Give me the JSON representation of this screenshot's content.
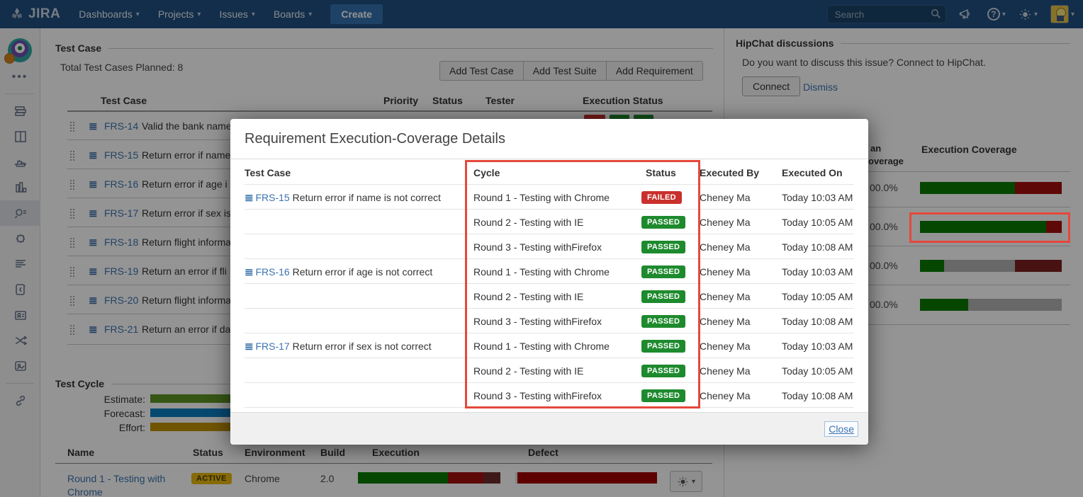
{
  "nav": {
    "brand": "JIRA",
    "items": {
      "dashboards": "Dashboards",
      "projects": "Projects",
      "issues": "Issues",
      "boards": "Boards"
    },
    "create_label": "Create",
    "search_placeholder": "Search"
  },
  "sidebar": {
    "icons": [
      "project-avatar",
      "more",
      "backlog",
      "board",
      "releases",
      "reports",
      "issues-search",
      "addons",
      "details",
      "development",
      "contacts",
      "workflow",
      "images",
      "link"
    ]
  },
  "test_case_section": {
    "title": "Test Case",
    "total": "Total Test Cases Planned: 8",
    "buttons": {
      "add_test_case": "Add Test Case",
      "add_test_suite": "Add Test Suite",
      "add_requirement": "Add Requirement"
    },
    "columns": {
      "test_case": "Test Case",
      "priority": "Priority",
      "status": "Status",
      "tester": "Tester",
      "execution_status": "Execution Status"
    },
    "rows": [
      {
        "id": "FRS-14",
        "title": "Valid the bank name"
      },
      {
        "id": "FRS-15",
        "title": "Return error if name"
      },
      {
        "id": "FRS-16",
        "title": "Return error if age i"
      },
      {
        "id": "FRS-17",
        "title": "Return error if sex is"
      },
      {
        "id": "FRS-18",
        "title": "Return flight informa"
      },
      {
        "id": "FRS-19",
        "title": "Return an error if fli"
      },
      {
        "id": "FRS-20",
        "title": "Return flight informa"
      },
      {
        "id": "FRS-21",
        "title": "Return an error if da"
      }
    ]
  },
  "test_cycle_section": {
    "title": "Test Cycle",
    "metrics": [
      {
        "label": "Estimate:",
        "segments": [
          {
            "color": "#5d9425",
            "pct": 100
          }
        ]
      },
      {
        "label": "Forecast:",
        "segments": [
          {
            "color": "#0b7fc2",
            "pct": 100
          }
        ]
      },
      {
        "label": "Effort:",
        "segments": [
          {
            "color": "#c29100",
            "pct": 100
          }
        ]
      }
    ],
    "columns": {
      "name": "Name",
      "status": "Status",
      "environment": "Environment",
      "build": "Build",
      "execution": "Execution",
      "defect": "Defect"
    },
    "row": {
      "name_line1": "Round 1 - Testing with",
      "name_line2": "Chrome",
      "status": "ACTIVE",
      "environment": "Chrome",
      "build": "2.0",
      "execution_segments": [
        {
          "color": "#0a7a00",
          "pct": 63
        },
        {
          "color": "#a40f0f",
          "pct": 25
        },
        {
          "color": "#6d2b2b",
          "pct": 12
        }
      ],
      "defect_segments": [
        {
          "color": "#e0e0e0",
          "pct": 1.5
        },
        {
          "color": "#a40000",
          "pct": 98.5
        }
      ]
    }
  },
  "hipchat": {
    "title": "HipChat discussions",
    "message": "Do you want to discuss this issue? Connect to HipChat.",
    "connect_label": "Connect",
    "dismiss_label": "Dismiss"
  },
  "coverage_panel": {
    "plan_header_fragment_1": "an",
    "plan_header_fragment_2": "overage",
    "exec_header": "Execution Coverage",
    "rows": [
      {
        "plan": "00.0%",
        "segments": [
          {
            "color": "#0a7a00",
            "pct": 67
          },
          {
            "color": "#a40f0f",
            "pct": 33
          }
        ]
      },
      {
        "plan": "00.0%",
        "segments": [
          {
            "color": "#0a7a00",
            "pct": 89
          },
          {
            "color": "#a40f0f",
            "pct": 11
          }
        ]
      },
      {
        "plan": "00.0%",
        "segments": [
          {
            "color": "#0a7a00",
            "pct": 17
          },
          {
            "color": "#b3b3b3",
            "pct": 50
          },
          {
            "color": "#7c1f1f",
            "pct": 33
          }
        ]
      },
      {
        "plan": "00.0%",
        "segments": [
          {
            "color": "#0a7a00",
            "pct": 34
          },
          {
            "color": "#b3b3b3",
            "pct": 66
          }
        ]
      }
    ]
  },
  "modal": {
    "title": "Requirement Execution-Coverage Details",
    "columns": {
      "test_case": "Test Case",
      "cycle": "Cycle",
      "status": "Status",
      "executed_by": "Executed By",
      "executed_on": "Executed On"
    },
    "rows": [
      {
        "id": "FRS-15",
        "title": "Return error if name is not correct",
        "cycle": "Round 1 - Testing with Chrome",
        "status": "FAILED",
        "executed_by": "Cheney Ma",
        "executed_on": "Today 10:03 AM"
      },
      {
        "id": "",
        "title": "",
        "cycle": "Round 2 - Testing with IE",
        "status": "PASSED",
        "executed_by": "Cheney Ma",
        "executed_on": "Today 10:05 AM"
      },
      {
        "id": "",
        "title": "",
        "cycle": "Round 3 - Testing withFirefox",
        "status": "PASSED",
        "executed_by": "Cheney Ma",
        "executed_on": "Today 10:08 AM"
      },
      {
        "id": "FRS-16",
        "title": "Return error if age is not correct",
        "cycle": "Round 1 - Testing with Chrome",
        "status": "PASSED",
        "executed_by": "Cheney Ma",
        "executed_on": "Today 10:03 AM"
      },
      {
        "id": "",
        "title": "",
        "cycle": "Round 2 - Testing with IE",
        "status": "PASSED",
        "executed_by": "Cheney Ma",
        "executed_on": "Today 10:05 AM"
      },
      {
        "id": "",
        "title": "",
        "cycle": "Round 3 - Testing withFirefox",
        "status": "PASSED",
        "executed_by": "Cheney Ma",
        "executed_on": "Today 10:08 AM"
      },
      {
        "id": "FRS-17",
        "title": "Return error if sex is not correct",
        "cycle": "Round 1 - Testing with Chrome",
        "status": "PASSED",
        "executed_by": "Cheney Ma",
        "executed_on": "Today 10:03 AM"
      },
      {
        "id": "",
        "title": "",
        "cycle": "Round 2 - Testing with IE",
        "status": "PASSED",
        "executed_by": "Cheney Ma",
        "executed_on": "Today 10:05 AM"
      },
      {
        "id": "",
        "title": "",
        "cycle": "Round 3 - Testing withFirefox",
        "status": "PASSED",
        "executed_by": "Cheney Ma",
        "executed_on": "Today 10:08 AM"
      }
    ],
    "close_label": "Close"
  },
  "colors": {
    "nav_bg": "#205081",
    "link": "#3b73af",
    "passed": "#1e8a2e",
    "failed": "#c9302c",
    "active_lozenge": "#e8b80e",
    "annotation_red": "#e5483c"
  }
}
